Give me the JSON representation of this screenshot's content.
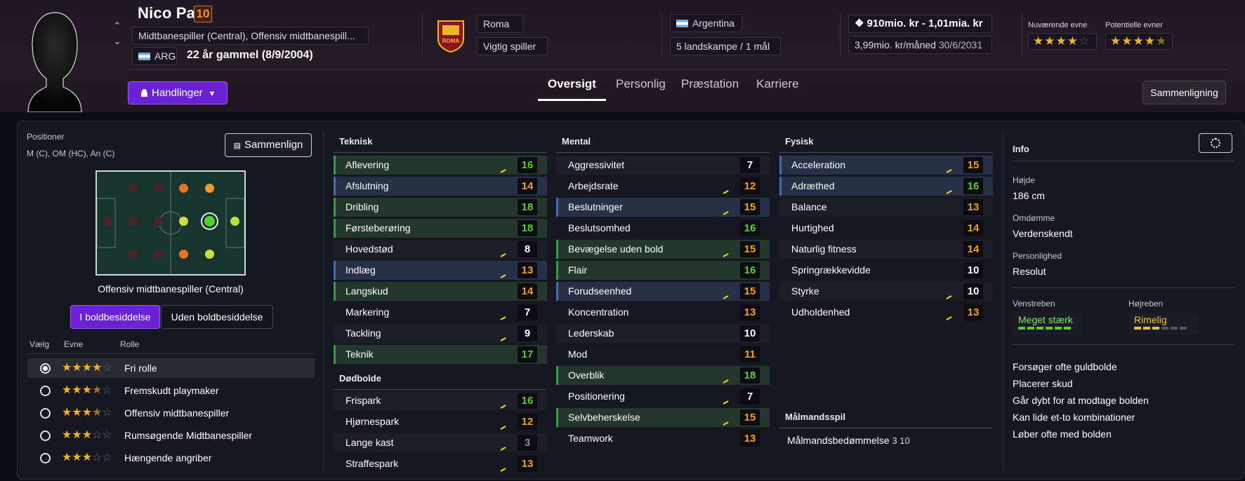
{
  "player": {
    "name": "Nico Paz",
    "number": "10",
    "positions_text": "Midtbanespiller (Central), Offensiv midtbanespill...",
    "nation_code": "ARG",
    "age_text": "22 år gammel (8/9/2004)"
  },
  "header": {
    "actions_label": "Handlinger",
    "club": "Roma",
    "club_role": "Vigtig spiller",
    "nation": "Argentina",
    "caps": "5 landskampe / 1 mål",
    "value": "910mio. kr - 1,01mia. kr",
    "wage": "3,99mio. kr/måned",
    "contract_end": "30/6/2031",
    "current_ability_label": "Nuværende evne",
    "potential_ability_label": "Potentielle evner",
    "current_ability_stars": 4,
    "potential_ability_stars": 4.5,
    "compare_label": "Sammenligning",
    "tabs": [
      "Oversigt",
      "Personlig",
      "Præstation",
      "Karriere"
    ]
  },
  "positions": {
    "title": "Positioner",
    "list": "M (C), OM (HC), An (C)",
    "compare_label": "Sammenlign",
    "role_caption": "Offensiv midtbanespiller (Central)",
    "toggle_on": "I boldbesiddelse",
    "toggle_off": "Uden boldbesiddelse",
    "table_headers": [
      "Vælg",
      "Evne",
      "Rolle"
    ],
    "roles": [
      {
        "stars": 4,
        "name": "Fri rolle",
        "selected": true
      },
      {
        "stars": 3.5,
        "name": "Fremskudt playmaker",
        "selected": false
      },
      {
        "stars": 3.5,
        "name": "Offensiv midtbanespiller",
        "selected": false
      },
      {
        "stars": 3,
        "name": "Rumsøgende Midtbanespiller",
        "selected": false
      },
      {
        "stars": 3,
        "name": "Hængende angriber",
        "selected": false
      }
    ]
  },
  "attributes": {
    "technical_title": "Teknisk",
    "technical": [
      {
        "name": "Aflevering",
        "value": 16,
        "hl": "green",
        "trend": true
      },
      {
        "name": "Afslutning",
        "value": 14,
        "hl": "blue",
        "trend": false
      },
      {
        "name": "Dribling",
        "value": 18,
        "hl": "green",
        "trend": false
      },
      {
        "name": "Førsteberøring",
        "value": 18,
        "hl": "green",
        "trend": false
      },
      {
        "name": "Hovedstød",
        "value": 8,
        "hl": "none",
        "trend": true
      },
      {
        "name": "Indlæg",
        "value": 13,
        "hl": "blue",
        "trend": true
      },
      {
        "name": "Langskud",
        "value": 14,
        "hl": "green",
        "trend": false
      },
      {
        "name": "Markering",
        "value": 7,
        "hl": "none",
        "trend": true
      },
      {
        "name": "Tackling",
        "value": 9,
        "hl": "none",
        "trend": true
      },
      {
        "name": "Teknik",
        "value": 17,
        "hl": "green",
        "trend": false
      }
    ],
    "setpieces_title": "Dødbolde",
    "setpieces": [
      {
        "name": "Frispark",
        "value": 16,
        "hl": "none",
        "trend": true
      },
      {
        "name": "Hjørnespark",
        "value": 12,
        "hl": "none",
        "trend": true
      },
      {
        "name": "Lange kast",
        "value": 3,
        "hl": "none",
        "trend": true
      },
      {
        "name": "Straffespark",
        "value": 13,
        "hl": "none",
        "trend": true
      }
    ],
    "mental_title": "Mental",
    "mental": [
      {
        "name": "Aggressivitet",
        "value": 7,
        "hl": "none",
        "trend": false
      },
      {
        "name": "Arbejdsrate",
        "value": 12,
        "hl": "none",
        "trend": true
      },
      {
        "name": "Beslutninger",
        "value": 15,
        "hl": "blue",
        "trend": true
      },
      {
        "name": "Beslutsomhed",
        "value": 16,
        "hl": "none",
        "trend": false
      },
      {
        "name": "Bevægelse uden bold",
        "value": 15,
        "hl": "green",
        "trend": true
      },
      {
        "name": "Flair",
        "value": 16,
        "hl": "green",
        "trend": false
      },
      {
        "name": "Forudseenhed",
        "value": 15,
        "hl": "blue",
        "trend": true
      },
      {
        "name": "Koncentration",
        "value": 13,
        "hl": "none",
        "trend": false
      },
      {
        "name": "Lederskab",
        "value": 10,
        "hl": "none",
        "trend": false
      },
      {
        "name": "Mod",
        "value": 11,
        "hl": "none",
        "trend": false
      },
      {
        "name": "Overblik",
        "value": 18,
        "hl": "green",
        "trend": true
      },
      {
        "name": "Positionering",
        "value": 7,
        "hl": "none",
        "trend": true
      },
      {
        "name": "Selvbeherskelse",
        "value": 15,
        "hl": "green",
        "trend": true
      },
      {
        "name": "Teamwork",
        "value": 13,
        "hl": "none",
        "trend": false
      }
    ],
    "physical_title": "Fysisk",
    "physical": [
      {
        "name": "Acceleration",
        "value": 15,
        "hl": "blue",
        "trend": true
      },
      {
        "name": "Adræthed",
        "value": 16,
        "hl": "blue",
        "trend": true
      },
      {
        "name": "Balance",
        "value": 13,
        "hl": "none",
        "trend": false
      },
      {
        "name": "Hurtighed",
        "value": 14,
        "hl": "none",
        "trend": false
      },
      {
        "name": "Naturlig fitness",
        "value": 14,
        "hl": "none",
        "trend": false
      },
      {
        "name": "Springrækkevidde",
        "value": 10,
        "hl": "none",
        "trend": false
      },
      {
        "name": "Styrke",
        "value": 10,
        "hl": "none",
        "trend": true
      },
      {
        "name": "Udholdenhed",
        "value": 13,
        "hl": "none",
        "trend": true
      }
    ],
    "gk_title": "Målmandsspil",
    "gk_label": "Målmandsbedømmelse",
    "gk_value": "3 10"
  },
  "info": {
    "title": "Info",
    "height_label": "Højde",
    "height": "186 cm",
    "reputation_label": "Omdømme",
    "reputation": "Verdenskendt",
    "personality_label": "Personlighed",
    "personality": "Resolut",
    "left_foot_label": "Venstreben",
    "left_foot": "Meget stærk",
    "left_foot_level": 6,
    "right_foot_label": "Højreben",
    "right_foot": "Rimelig",
    "right_foot_level": 3,
    "traits": [
      "Forsøger ofte guldbolde",
      "Placerer skud",
      "Går dybt for at modtage bolden",
      "Kan lide et-to kombinationer",
      "Løber ofte med bolden"
    ]
  },
  "colors": {
    "accent": "#6a22d4",
    "green_value": "#54d12a",
    "orange_value": "#f0a020",
    "star": "#f0b429",
    "trend": "#e8e020"
  }
}
